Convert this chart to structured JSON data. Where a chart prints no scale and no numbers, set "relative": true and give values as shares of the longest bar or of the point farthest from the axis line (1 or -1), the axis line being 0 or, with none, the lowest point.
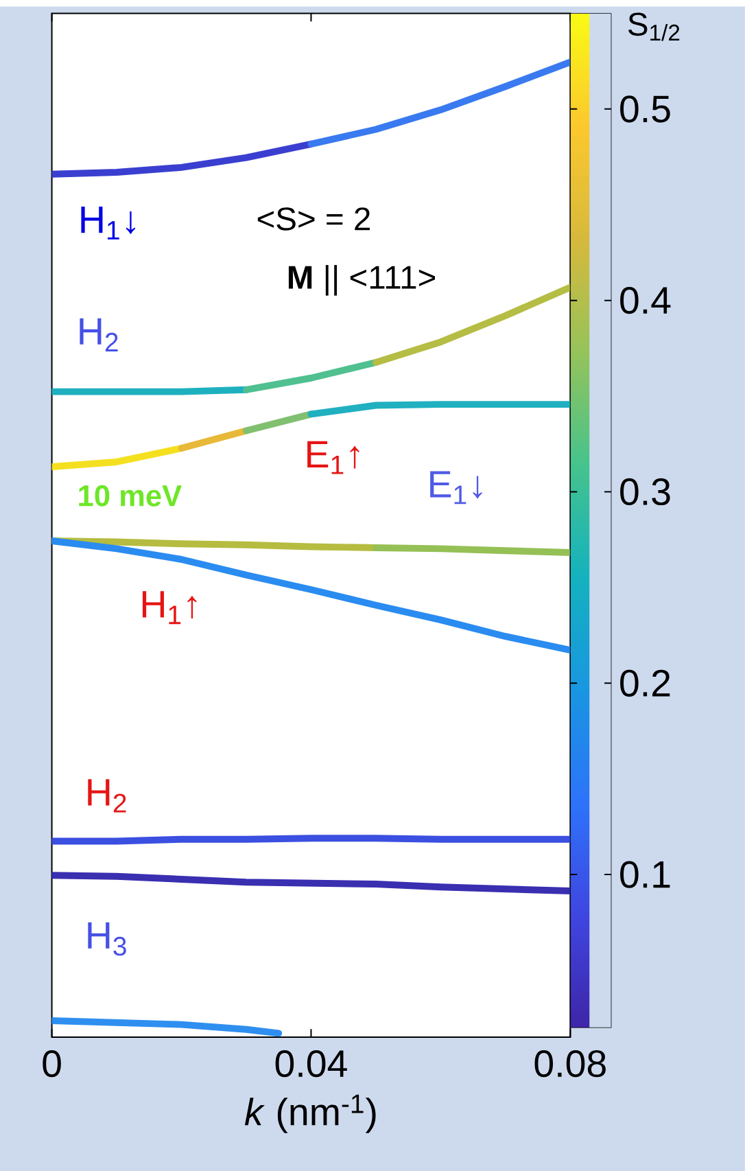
{
  "chart_data": {
    "type": "line",
    "relative": true,
    "xlabel": "*k* (nm$^{-1}$)",
    "clabel": "S$_{1/2}$",
    "xlim": [
      0,
      0.08
    ],
    "xticks": [
      0,
      0.04,
      0.08
    ],
    "clim": [
      0.02,
      0.55
    ],
    "cticks": [
      0.1,
      0.2,
      0.3,
      0.4,
      0.5
    ],
    "series": [
      {
        "color": "#3b3fd0",
        "x": [
          0,
          0.01,
          0.02,
          0.03,
          0.04
        ],
        "values": [
          0.885,
          0.887,
          0.892,
          0.902,
          0.916
        ]
      },
      {
        "color": "#3a7af0",
        "x": [
          0.04,
          0.05,
          0.06,
          0.07,
          0.08
        ],
        "values": [
          0.916,
          0.931,
          0.951,
          0.975,
          1.0
        ]
      },
      {
        "color": "#1fb0c0",
        "x": [
          0,
          0.01,
          0.02,
          0.03
        ],
        "values": [
          0.662,
          0.662,
          0.662,
          0.664
        ]
      },
      {
        "color": "#50c090",
        "x": [
          0.03,
          0.04,
          0.05
        ],
        "values": [
          0.664,
          0.676,
          0.692
        ]
      },
      {
        "color": "#b5bd45",
        "x": [
          0.05,
          0.06,
          0.07,
          0.08
        ],
        "values": [
          0.692,
          0.713,
          0.74,
          0.769
        ]
      },
      {
        "color": "#f5e020",
        "x": [
          0,
          0.01,
          0.02
        ],
        "values": [
          0.585,
          0.59,
          0.604
        ]
      },
      {
        "color": "#e8b838",
        "x": [
          0.02,
          0.03
        ],
        "values": [
          0.604,
          0.622
        ]
      },
      {
        "color": "#80c070",
        "x": [
          0.03,
          0.04
        ],
        "values": [
          0.622,
          0.639
        ]
      },
      {
        "color": "#20b0c0",
        "x": [
          0.04,
          0.05,
          0.06,
          0.07,
          0.08
        ],
        "values": [
          0.639,
          0.648,
          0.649,
          0.649,
          0.649
        ]
      },
      {
        "color": "#b5bc40",
        "x": [
          0,
          0.01,
          0.02,
          0.03,
          0.04,
          0.05
        ],
        "values": [
          0.509,
          0.508,
          0.506,
          0.505,
          0.503,
          0.502
        ]
      },
      {
        "color": "#95c055",
        "x": [
          0.05,
          0.06,
          0.07,
          0.08
        ],
        "values": [
          0.502,
          0.501,
          0.499,
          0.497
        ]
      },
      {
        "color": "#2a8cf0",
        "x": [
          0,
          0.01,
          0.02,
          0.03,
          0.04,
          0.05,
          0.06,
          0.07,
          0.08
        ],
        "values": [
          0.509,
          0.501,
          0.49,
          0.474,
          0.459,
          0.443,
          0.428,
          0.411,
          0.397
        ]
      },
      {
        "color": "#3b4fe0",
        "x": [
          0,
          0.01,
          0.02,
          0.03,
          0.04,
          0.05,
          0.06,
          0.07,
          0.08
        ],
        "values": [
          0.201,
          0.201,
          0.203,
          0.203,
          0.204,
          0.204,
          0.203,
          0.203,
          0.203
        ]
      },
      {
        "color": "#3a2fb0",
        "x": [
          0,
          0.01,
          0.02,
          0.03,
          0.04,
          0.05,
          0.06,
          0.07,
          0.08
        ],
        "values": [
          0.166,
          0.165,
          0.162,
          0.159,
          0.158,
          0.157,
          0.154,
          0.152,
          0.15
        ]
      },
      {
        "color": "#2f8ff0",
        "x": [
          0,
          0.01,
          0.02,
          0.03,
          0.035
        ],
        "values": [
          0.017,
          0.015,
          0.013,
          0.008,
          0.004
        ]
      }
    ],
    "annotations": [
      "H$_{1}$↓",
      "<S> = 2",
      "**M** || <111>",
      "H$_{2}$",
      "E$_{1}$↑",
      "10 meV",
      "E$_{1}$↓",
      "H$_{1}$↑",
      "H$_{2}$",
      "H$_{3}$"
    ]
  }
}
